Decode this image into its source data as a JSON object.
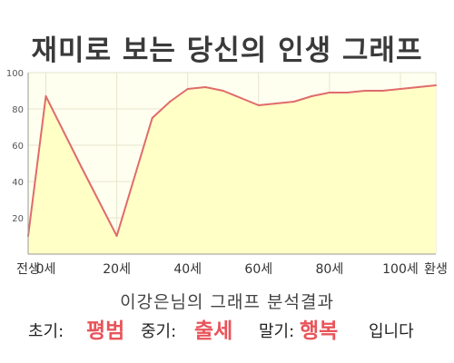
{
  "title": "재미로 보는 당신의 인생 그래프",
  "subtitle": "이강은님의 그래프 분석결과",
  "result": {
    "early_label": "초기:",
    "early_value": "평범",
    "mid_label": "중기:",
    "mid_value": "출세",
    "late_label": "말기:",
    "late_value": "행복",
    "ending": "입니다"
  },
  "colors": {
    "line": "#e06b6b",
    "fill": "#ffffc6",
    "plot_bg": "#fffff0",
    "grid": "#e6e6cc",
    "accent_text": "#e8545a"
  },
  "chart_data": {
    "type": "area",
    "x": [
      -5,
      0,
      10,
      20,
      30,
      35,
      40,
      45,
      50,
      55,
      60,
      65,
      70,
      75,
      80,
      85,
      90,
      95,
      100,
      105,
      110
    ],
    "values": [
      10,
      87,
      48,
      10,
      75,
      84,
      91,
      92,
      90,
      86,
      82,
      83,
      84,
      87,
      89,
      89,
      90,
      90,
      91,
      92,
      93
    ],
    "xticks": [
      -5,
      0,
      20,
      40,
      60,
      80,
      100,
      110
    ],
    "xtick_labels": [
      "전생",
      "0세",
      "20세",
      "40세",
      "60세",
      "80세",
      "100세",
      "환생"
    ],
    "yticks": [
      20,
      40,
      60,
      80,
      100
    ],
    "ylim": [
      0,
      100
    ],
    "grid": true
  }
}
